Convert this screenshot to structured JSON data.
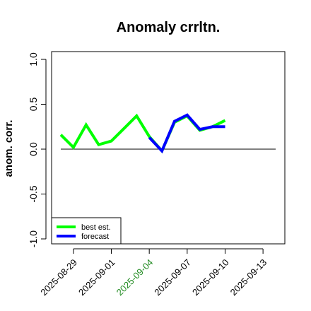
{
  "chart_data": {
    "type": "line",
    "title": "Anomaly crrltn.",
    "ylabel": "anom. corr.",
    "xlabel": "",
    "ylim": [
      -1.0,
      1.0
    ],
    "yticks": [
      {
        "value": -1.0,
        "label": "-1.0"
      },
      {
        "value": -0.5,
        "label": "-0.5"
      },
      {
        "value": 0.0,
        "label": "0.0"
      },
      {
        "value": 0.5,
        "label": "0.5"
      },
      {
        "value": 1.0,
        "label": "1.0"
      }
    ],
    "xticks": [
      {
        "value": "2025-08-29",
        "label": "2025-08-29",
        "color": "#000000"
      },
      {
        "value": "2025-09-01",
        "label": "2025-09-01",
        "color": "#000000"
      },
      {
        "value": "2025-09-04",
        "label": "2025-09-04",
        "color": "#228b22"
      },
      {
        "value": "2025-09-07",
        "label": "2025-09-07",
        "color": "#000000"
      },
      {
        "value": "2025-09-10",
        "label": "2025-09-10",
        "color": "#000000"
      },
      {
        "value": "2025-09-13",
        "label": "2025-09-13",
        "color": "#000000"
      }
    ],
    "xlim": [
      "2025-08-28",
      "2025-09-14"
    ],
    "reference_line": {
      "y": 0.0,
      "from": "2025-08-28",
      "to": "2025-09-14",
      "color": "#000000"
    },
    "series": [
      {
        "name": "best est.",
        "color": "#00ff00",
        "x": [
          "2025-08-28",
          "2025-08-29",
          "2025-08-30",
          "2025-08-31",
          "2025-09-01",
          "2025-09-02",
          "2025-09-03",
          "2025-09-04",
          "2025-09-05",
          "2025-09-06",
          "2025-09-07",
          "2025-09-08",
          "2025-09-09",
          "2025-09-10"
        ],
        "values": [
          0.16,
          0.02,
          0.27,
          0.05,
          0.09,
          0.23,
          0.37,
          0.14,
          -0.02,
          0.3,
          0.37,
          0.21,
          0.25,
          0.32
        ]
      },
      {
        "name": "forecast",
        "color": "#0000ff",
        "x": [
          "2025-09-04",
          "2025-09-05",
          "2025-09-06",
          "2025-09-07",
          "2025-09-08",
          "2025-09-09",
          "2025-09-10"
        ],
        "values": [
          0.13,
          -0.02,
          0.31,
          0.38,
          0.22,
          0.25,
          0.25
        ]
      }
    ],
    "legend": {
      "position": "bottom-left",
      "entries": [
        {
          "label": "best est.",
          "color": "#00ff00"
        },
        {
          "label": "forecast",
          "color": "#0000ff"
        }
      ]
    },
    "grid": false
  }
}
